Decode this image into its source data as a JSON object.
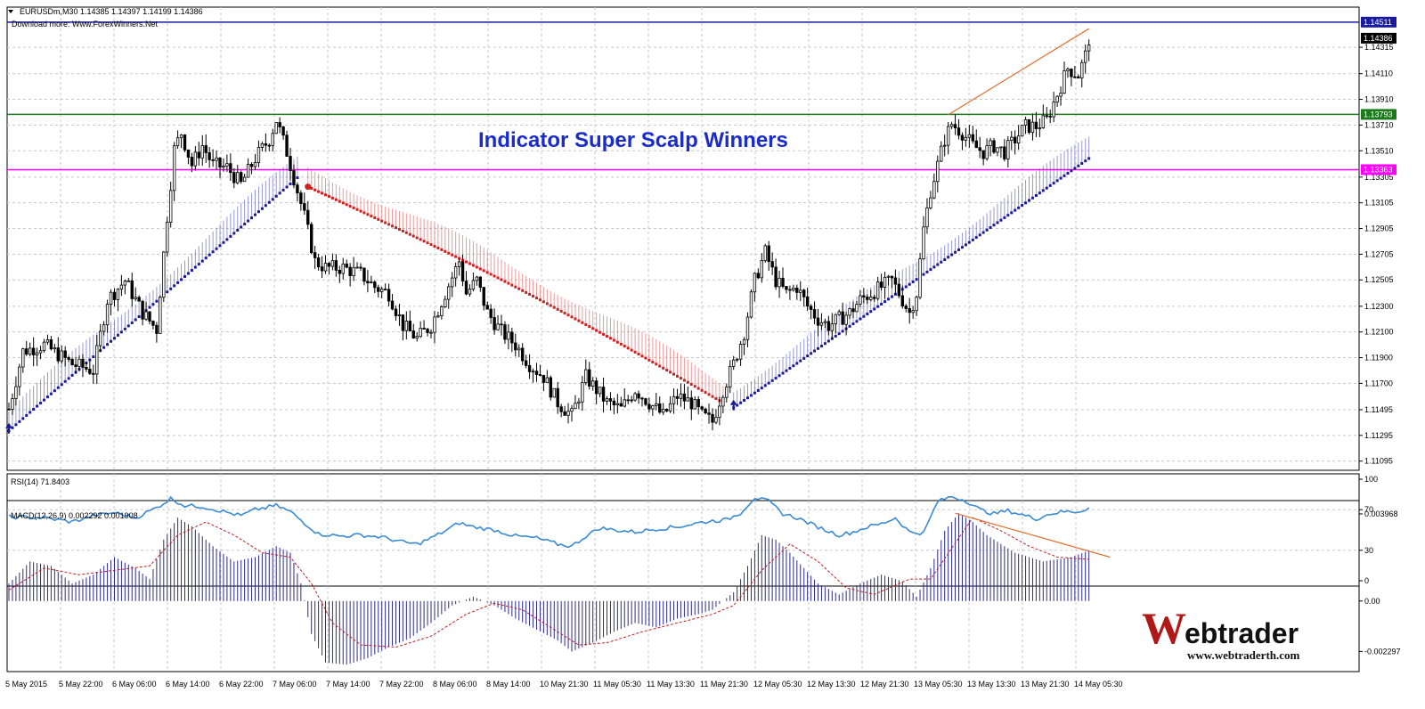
{
  "header": {
    "symbol_line": "EURUSDm,M30  1.14385 1.14397 1.14199 1.14386",
    "download_note": "Download more: Www.ForexWinners.Net"
  },
  "overlay_title": "Indicator Super Scalp Winners",
  "logo": {
    "brand": "Webtrader",
    "url": "www.webtraderth.com"
  },
  "colors": {
    "candle": "#000000",
    "grid": "#c8c8c8",
    "trend_up": "#1a1a9a",
    "trend_down": "#d02020",
    "line_blue": "#1a1aa0",
    "line_green": "#1a7a1a",
    "line_magenta": "#ff00ff",
    "rsi": "#3a8ad6",
    "macd_hist": "#2a2a8a",
    "macd_signal": "#c02020",
    "trendline": "#e07030"
  },
  "chart_data": [
    {
      "type": "candlestick",
      "name": "EURUSDm,M30",
      "ylim": [
        1.11065,
        1.146
      ],
      "y_ticks": [
        "1.14315",
        "1.14110",
        "1.13910",
        "1.13710",
        "1.13510",
        "1.13305",
        "1.13105",
        "1.12905",
        "1.12705",
        "1.12505",
        "1.12300",
        "1.12100",
        "1.11900",
        "1.11700",
        "1.11495",
        "1.11295",
        "1.11095"
      ],
      "price_labels": [
        {
          "value": 1.14511,
          "text": "1.14511",
          "role": "horizontal line"
        },
        {
          "value": 1.14386,
          "text": "1.14386",
          "role": "current price"
        },
        {
          "value": 1.13793,
          "text": "1.13793",
          "role": "horizontal line"
        },
        {
          "value": 1.13363,
          "text": "1.13363",
          "role": "horizontal line"
        }
      ],
      "x_labels": [
        "5 May 2015",
        "5 May 22:00",
        "6 May 06:00",
        "6 May 14:00",
        "6 May 22:00",
        "7 May 06:00",
        "7 May 14:00",
        "7 May 22:00",
        "8 May 06:00",
        "8 May 14:00",
        "10 May 21:30",
        "11 May 05:30",
        "11 May 13:30",
        "11 May 21:30",
        "12 May 05:30",
        "12 May 13:30",
        "12 May 21:30",
        "13 May 05:30",
        "13 May 13:30",
        "13 May 21:30",
        "14 May 05:30"
      ],
      "close_anchors": [
        [
          0,
          1.115
        ],
        [
          4,
          1.1195
        ],
        [
          10,
          1.12
        ],
        [
          18,
          1.1185
        ],
        [
          24,
          1.118
        ],
        [
          28,
          1.1235
        ],
        [
          33,
          1.125
        ],
        [
          38,
          1.1225
        ],
        [
          42,
          1.1212
        ],
        [
          45,
          1.13
        ],
        [
          47,
          1.1352
        ],
        [
          49,
          1.1365
        ],
        [
          52,
          1.134
        ],
        [
          55,
          1.1355
        ],
        [
          58,
          1.134
        ],
        [
          62,
          1.1338
        ],
        [
          66,
          1.1325
        ],
        [
          70,
          1.1345
        ],
        [
          74,
          1.136
        ],
        [
          76,
          1.1375
        ],
        [
          79,
          1.135
        ],
        [
          81,
          1.133
        ],
        [
          84,
          1.13
        ],
        [
          87,
          1.1265
        ],
        [
          90,
          1.126
        ],
        [
          95,
          1.126
        ],
        [
          100,
          1.1255
        ],
        [
          104,
          1.1245
        ],
        [
          108,
          1.124
        ],
        [
          112,
          1.1215
        ],
        [
          116,
          1.1205
        ],
        [
          120,
          1.1215
        ],
        [
          124,
          1.124
        ],
        [
          128,
          1.1265
        ],
        [
          130,
          1.124
        ],
        [
          133,
          1.125
        ],
        [
          136,
          1.1225
        ],
        [
          140,
          1.121
        ],
        [
          144,
          1.12
        ],
        [
          148,
          1.1185
        ],
        [
          152,
          1.1175
        ],
        [
          156,
          1.1155
        ],
        [
          160,
          1.1145
        ],
        [
          164,
          1.1175
        ],
        [
          167,
          1.1165
        ],
        [
          170,
          1.1155
        ],
        [
          174,
          1.115
        ],
        [
          178,
          1.1165
        ],
        [
          182,
          1.1155
        ],
        [
          186,
          1.1145
        ],
        [
          190,
          1.116
        ],
        [
          194,
          1.1155
        ],
        [
          197,
          1.1145
        ],
        [
          200,
          1.114
        ],
        [
          203,
          1.1165
        ],
        [
          206,
          1.1185
        ],
        [
          209,
          1.121
        ],
        [
          212,
          1.125
        ],
        [
          215,
          1.1272
        ],
        [
          218,
          1.125
        ],
        [
          221,
          1.124
        ],
        [
          224,
          1.1245
        ],
        [
          227,
          1.123
        ],
        [
          230,
          1.122
        ],
        [
          233,
          1.1215
        ],
        [
          236,
          1.122
        ],
        [
          239,
          1.1225
        ],
        [
          242,
          1.1235
        ],
        [
          245,
          1.124
        ],
        [
          248,
          1.1245
        ],
        [
          251,
          1.125
        ],
        [
          254,
          1.1235
        ],
        [
          256,
          1.1225
        ],
        [
          258,
          1.124
        ],
        [
          260,
          1.129
        ],
        [
          262,
          1.132
        ],
        [
          264,
          1.134
        ],
        [
          266,
          1.136
        ],
        [
          268,
          1.1372
        ],
        [
          271,
          1.1365
        ],
        [
          274,
          1.1355
        ],
        [
          277,
          1.135
        ],
        [
          280,
          1.1355
        ],
        [
          283,
          1.135
        ],
        [
          286,
          1.136
        ],
        [
          289,
          1.137
        ],
        [
          292,
          1.137
        ],
        [
          295,
          1.1375
        ],
        [
          298,
          1.1395
        ],
        [
          301,
          1.1415
        ],
        [
          304,
          1.141
        ],
        [
          306,
          1.1425
        ],
        [
          307,
          1.1438
        ]
      ],
      "trend_indicator": {
        "segments": [
          {
            "direction": "up",
            "from": [
              0,
              1.1133
            ],
            "to": [
              82,
              1.133
            ]
          },
          {
            "direction": "down",
            "from": [
              85,
              1.1323
            ],
            "to": [
              203,
              1.1155
            ]
          },
          {
            "direction": "up",
            "from": [
              206,
              1.1151
            ],
            "to": [
              307,
              1.1345
            ]
          }
        ],
        "arrows_up_at": [
          0,
          206
        ],
        "arrows_down_at": [
          85
        ]
      },
      "trendlines": [
        {
          "from": [
            267,
            1.1379
          ],
          "to": [
            307,
            1.1446
          ]
        }
      ]
    },
    {
      "type": "line",
      "name": "RSI(14) 71.8403",
      "ylim": [
        0,
        100
      ],
      "y_ticks": [
        "100",
        "70",
        "30",
        "0"
      ],
      "anchors": [
        [
          0,
          63
        ],
        [
          10,
          62
        ],
        [
          18,
          58
        ],
        [
          24,
          64
        ],
        [
          30,
          67
        ],
        [
          36,
          62
        ],
        [
          42,
          72
        ],
        [
          46,
          81
        ],
        [
          50,
          74
        ],
        [
          55,
          73
        ],
        [
          60,
          69
        ],
        [
          66,
          64
        ],
        [
          70,
          70
        ],
        [
          76,
          74
        ],
        [
          80,
          68
        ],
        [
          84,
          57
        ],
        [
          88,
          46
        ],
        [
          94,
          44
        ],
        [
          100,
          45
        ],
        [
          106,
          43
        ],
        [
          112,
          38
        ],
        [
          116,
          36
        ],
        [
          120,
          42
        ],
        [
          124,
          49
        ],
        [
          128,
          57
        ],
        [
          132,
          53
        ],
        [
          138,
          50
        ],
        [
          144,
          44
        ],
        [
          150,
          42
        ],
        [
          156,
          36
        ],
        [
          160,
          34
        ],
        [
          164,
          44
        ],
        [
          168,
          52
        ],
        [
          172,
          50
        ],
        [
          178,
          48
        ],
        [
          184,
          51
        ],
        [
          190,
          53
        ],
        [
          196,
          57
        ],
        [
          200,
          59
        ],
        [
          204,
          60
        ],
        [
          208,
          67
        ],
        [
          212,
          82
        ],
        [
          216,
          78
        ],
        [
          220,
          66
        ],
        [
          224,
          62
        ],
        [
          228,
          56
        ],
        [
          232,
          50
        ],
        [
          236,
          45
        ],
        [
          240,
          48
        ],
        [
          244,
          53
        ],
        [
          248,
          56
        ],
        [
          252,
          62
        ],
        [
          256,
          48
        ],
        [
          260,
          47
        ],
        [
          264,
          78
        ],
        [
          268,
          83
        ],
        [
          272,
          79
        ],
        [
          276,
          70
        ],
        [
          280,
          66
        ],
        [
          284,
          69
        ],
        [
          288,
          65
        ],
        [
          292,
          61
        ],
        [
          296,
          66
        ],
        [
          300,
          68
        ],
        [
          304,
          68
        ],
        [
          307,
          72
        ]
      ]
    },
    {
      "type": "bar+line",
      "name": "MACD(12,26,9) 0.002292 0.001908",
      "ylim": [
        -0.00297,
        0.00417
      ],
      "y_ticks": [
        "0.003968",
        "0.00",
        "-0.002297"
      ],
      "histogram_anchors": [
        [
          0,
          0.0008
        ],
        [
          6,
          0.0018
        ],
        [
          12,
          0.0016
        ],
        [
          18,
          0.0008
        ],
        [
          24,
          0.0012
        ],
        [
          30,
          0.002
        ],
        [
          36,
          0.0015
        ],
        [
          40,
          0.001
        ],
        [
          44,
          0.0028
        ],
        [
          48,
          0.0038
        ],
        [
          52,
          0.0034
        ],
        [
          58,
          0.0025
        ],
        [
          64,
          0.0018
        ],
        [
          70,
          0.002
        ],
        [
          76,
          0.0025
        ],
        [
          80,
          0.0022
        ],
        [
          83,
          0.0008
        ],
        [
          86,
          -0.0015
        ],
        [
          90,
          -0.0028
        ],
        [
          96,
          -0.0029
        ],
        [
          102,
          -0.0026
        ],
        [
          108,
          -0.0021
        ],
        [
          114,
          -0.0017
        ],
        [
          120,
          -0.001
        ],
        [
          126,
          -0.0002
        ],
        [
          132,
          0.0002
        ],
        [
          138,
          -0.0002
        ],
        [
          144,
          -0.0008
        ],
        [
          150,
          -0.0013
        ],
        [
          156,
          -0.0018
        ],
        [
          160,
          -0.0023
        ],
        [
          166,
          -0.0019
        ],
        [
          172,
          -0.0014
        ],
        [
          178,
          -0.001
        ],
        [
          184,
          -0.0012
        ],
        [
          190,
          -0.0008
        ],
        [
          196,
          -0.0006
        ],
        [
          200,
          -0.0004
        ],
        [
          206,
          0.0004
        ],
        [
          210,
          0.0016
        ],
        [
          214,
          0.003
        ],
        [
          218,
          0.0028
        ],
        [
          222,
          0.0022
        ],
        [
          226,
          0.0015
        ],
        [
          230,
          0.0008
        ],
        [
          236,
          0.0003
        ],
        [
          242,
          0.0008
        ],
        [
          248,
          0.0012
        ],
        [
          254,
          0.0009
        ],
        [
          258,
          0.0002
        ],
        [
          262,
          0.0015
        ],
        [
          266,
          0.0032
        ],
        [
          270,
          0.004
        ],
        [
          274,
          0.0036
        ],
        [
          278,
          0.003
        ],
        [
          282,
          0.0026
        ],
        [
          286,
          0.0022
        ],
        [
          290,
          0.002
        ],
        [
          294,
          0.0018
        ],
        [
          298,
          0.0019
        ],
        [
          302,
          0.002
        ],
        [
          307,
          0.0023
        ]
      ],
      "signal_anchors": [
        [
          0,
          0.0005
        ],
        [
          10,
          0.0015
        ],
        [
          20,
          0.0012
        ],
        [
          30,
          0.0014
        ],
        [
          40,
          0.0016
        ],
        [
          48,
          0.003
        ],
        [
          56,
          0.0036
        ],
        [
          64,
          0.003
        ],
        [
          72,
          0.0022
        ],
        [
          80,
          0.002
        ],
        [
          86,
          0.0008
        ],
        [
          92,
          -0.001
        ],
        [
          100,
          -0.002
        ],
        [
          110,
          -0.0021
        ],
        [
          120,
          -0.0016
        ],
        [
          130,
          -0.0006
        ],
        [
          138,
          -0.0001
        ],
        [
          146,
          -0.0004
        ],
        [
          154,
          -0.0012
        ],
        [
          162,
          -0.002
        ],
        [
          170,
          -0.0019
        ],
        [
          180,
          -0.0014
        ],
        [
          190,
          -0.001
        ],
        [
          200,
          -0.0006
        ],
        [
          206,
          -0.0002
        ],
        [
          214,
          0.0014
        ],
        [
          222,
          0.0026
        ],
        [
          230,
          0.0018
        ],
        [
          238,
          0.0006
        ],
        [
          246,
          0.0003
        ],
        [
          256,
          0.001
        ],
        [
          262,
          0.001
        ],
        [
          268,
          0.0024
        ],
        [
          274,
          0.0038
        ],
        [
          282,
          0.0032
        ],
        [
          290,
          0.0025
        ],
        [
          298,
          0.002
        ],
        [
          307,
          0.0019
        ]
      ],
      "trendline": {
        "from": [
          269,
          0.004
        ],
        "to": [
          313,
          0.002
        ]
      }
    }
  ]
}
